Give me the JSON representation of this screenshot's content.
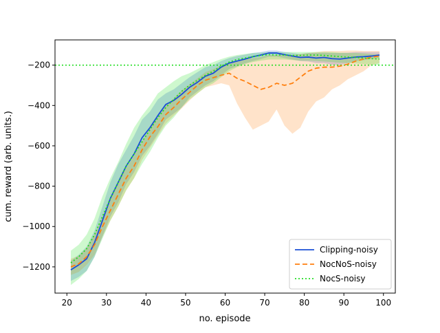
{
  "chart_data": {
    "type": "line",
    "title": "",
    "xlabel": "no. episode",
    "ylabel": "cum. reward (arb. units.)",
    "xlim": [
      17,
      103
    ],
    "ylim": [
      -1330,
      -75
    ],
    "x_ticks": [
      20,
      30,
      40,
      50,
      60,
      70,
      80,
      90,
      100
    ],
    "y_ticks": [
      -1200,
      -1000,
      -800,
      -600,
      -400,
      -200
    ],
    "x_tick_labels": [
      "20",
      "30",
      "40",
      "50",
      "60",
      "70",
      "80",
      "90",
      "100"
    ],
    "y_tick_labels": [
      "−1200",
      "−1000",
      "−800",
      "−600",
      "−400",
      "−200"
    ],
    "grid": false,
    "legend_position": "lower-right",
    "reference_line": {
      "y": -200,
      "style": "dotted",
      "color": "#22dd22"
    },
    "x": [
      21,
      23,
      25,
      27,
      29,
      31,
      33,
      35,
      37,
      39,
      41,
      43,
      45,
      47,
      49,
      51,
      53,
      55,
      57,
      59,
      61,
      63,
      65,
      67,
      69,
      71,
      73,
      75,
      77,
      79,
      81,
      83,
      85,
      87,
      89,
      91,
      93,
      95,
      97,
      99
    ],
    "series": [
      {
        "name": "Clipping-noisy",
        "color": "#1a4fd6",
        "dash": "solid",
        "values": [
          -1215,
          -1190,
          -1160,
          -1080,
          -970,
          -860,
          -780,
          -700,
          -640,
          -560,
          -510,
          -450,
          -395,
          -375,
          -345,
          -310,
          -285,
          -255,
          -240,
          -210,
          -190,
          -180,
          -170,
          -158,
          -150,
          -140,
          -140,
          -148,
          -155,
          -162,
          -160,
          -165,
          -162,
          -168,
          -170,
          -165,
          -160,
          -158,
          -155,
          -150
        ],
        "band_upper": [
          -1170,
          -1140,
          -1100,
          -1020,
          -900,
          -780,
          -690,
          -620,
          -550,
          -470,
          -430,
          -370,
          -340,
          -320,
          -290,
          -260,
          -235,
          -210,
          -200,
          -180,
          -165,
          -155,
          -148,
          -140,
          -135,
          -128,
          -128,
          -135,
          -140,
          -145,
          -140,
          -140,
          -138,
          -140,
          -140,
          -138,
          -135,
          -135,
          -135,
          -135
        ],
        "band_lower": [
          -1270,
          -1250,
          -1220,
          -1150,
          -1050,
          -950,
          -880,
          -790,
          -730,
          -650,
          -600,
          -540,
          -470,
          -440,
          -410,
          -360,
          -330,
          -300,
          -280,
          -250,
          -220,
          -205,
          -192,
          -180,
          -170,
          -158,
          -158,
          -165,
          -172,
          -180,
          -182,
          -190,
          -190,
          -198,
          -200,
          -190,
          -180,
          -175,
          -170,
          -165
        ]
      },
      {
        "name": "NocNoS-noisy",
        "color": "#ff7f0e",
        "dash": "dashed",
        "values": [
          -1200,
          -1185,
          -1150,
          -1090,
          -1000,
          -920,
          -840,
          -760,
          -700,
          -620,
          -555,
          -505,
          -445,
          -410,
          -370,
          -335,
          -300,
          -275,
          -262,
          -250,
          -240,
          -265,
          -280,
          -300,
          -320,
          -310,
          -290,
          -300,
          -290,
          -260,
          -230,
          -215,
          -210,
          -210,
          -205,
          -195,
          -180,
          -170,
          -160,
          -155
        ],
        "band_upper": [
          -1160,
          -1145,
          -1105,
          -1040,
          -950,
          -870,
          -780,
          -710,
          -650,
          -580,
          -510,
          -460,
          -400,
          -365,
          -325,
          -295,
          -265,
          -235,
          -220,
          -200,
          -190,
          -180,
          -170,
          -165,
          -160,
          -150,
          -150,
          -148,
          -150,
          -145,
          -140,
          -135,
          -130,
          -130,
          -130,
          -128,
          -128,
          -130,
          -130,
          -130
        ],
        "band_lower": [
          -1240,
          -1225,
          -1190,
          -1140,
          -1050,
          -970,
          -900,
          -820,
          -760,
          -670,
          -610,
          -550,
          -490,
          -450,
          -415,
          -375,
          -340,
          -310,
          -300,
          -290,
          -300,
          -390,
          -460,
          -520,
          -500,
          -480,
          -420,
          -500,
          -540,
          -510,
          -430,
          -380,
          -360,
          -320,
          -300,
          -270,
          -250,
          -230,
          -200,
          -190
        ]
      },
      {
        "name": "NocS-noisy",
        "color": "#22dd22",
        "dash": "dotted",
        "values": [
          -1180,
          -1150,
          -1110,
          -1040,
          -950,
          -860,
          -780,
          -700,
          -640,
          -580,
          -520,
          -460,
          -410,
          -370,
          -330,
          -300,
          -275,
          -250,
          -230,
          -205,
          -185,
          -172,
          -165,
          -158,
          -152,
          -148,
          -150,
          -150,
          -152,
          -152,
          -150,
          -150,
          -152,
          -155,
          -158,
          -160,
          -162,
          -165,
          -168,
          -170
        ],
        "band_upper": [
          -1120,
          -1090,
          -1040,
          -960,
          -850,
          -760,
          -680,
          -590,
          -510,
          -450,
          -400,
          -340,
          -310,
          -280,
          -255,
          -240,
          -220,
          -200,
          -185,
          -170,
          -158,
          -150,
          -145,
          -140,
          -138,
          -135,
          -135,
          -135,
          -135,
          -135,
          -135,
          -135,
          -135,
          -135,
          -138,
          -140,
          -140,
          -142,
          -145,
          -148
        ],
        "band_lower": [
          -1290,
          -1260,
          -1220,
          -1150,
          -1060,
          -970,
          -900,
          -820,
          -760,
          -690,
          -630,
          -560,
          -500,
          -460,
          -410,
          -370,
          -340,
          -310,
          -290,
          -260,
          -230,
          -210,
          -195,
          -185,
          -178,
          -172,
          -172,
          -172,
          -175,
          -178,
          -178,
          -180,
          -182,
          -185,
          -188,
          -190,
          -192,
          -195,
          -198,
          -200
        ]
      }
    ]
  }
}
